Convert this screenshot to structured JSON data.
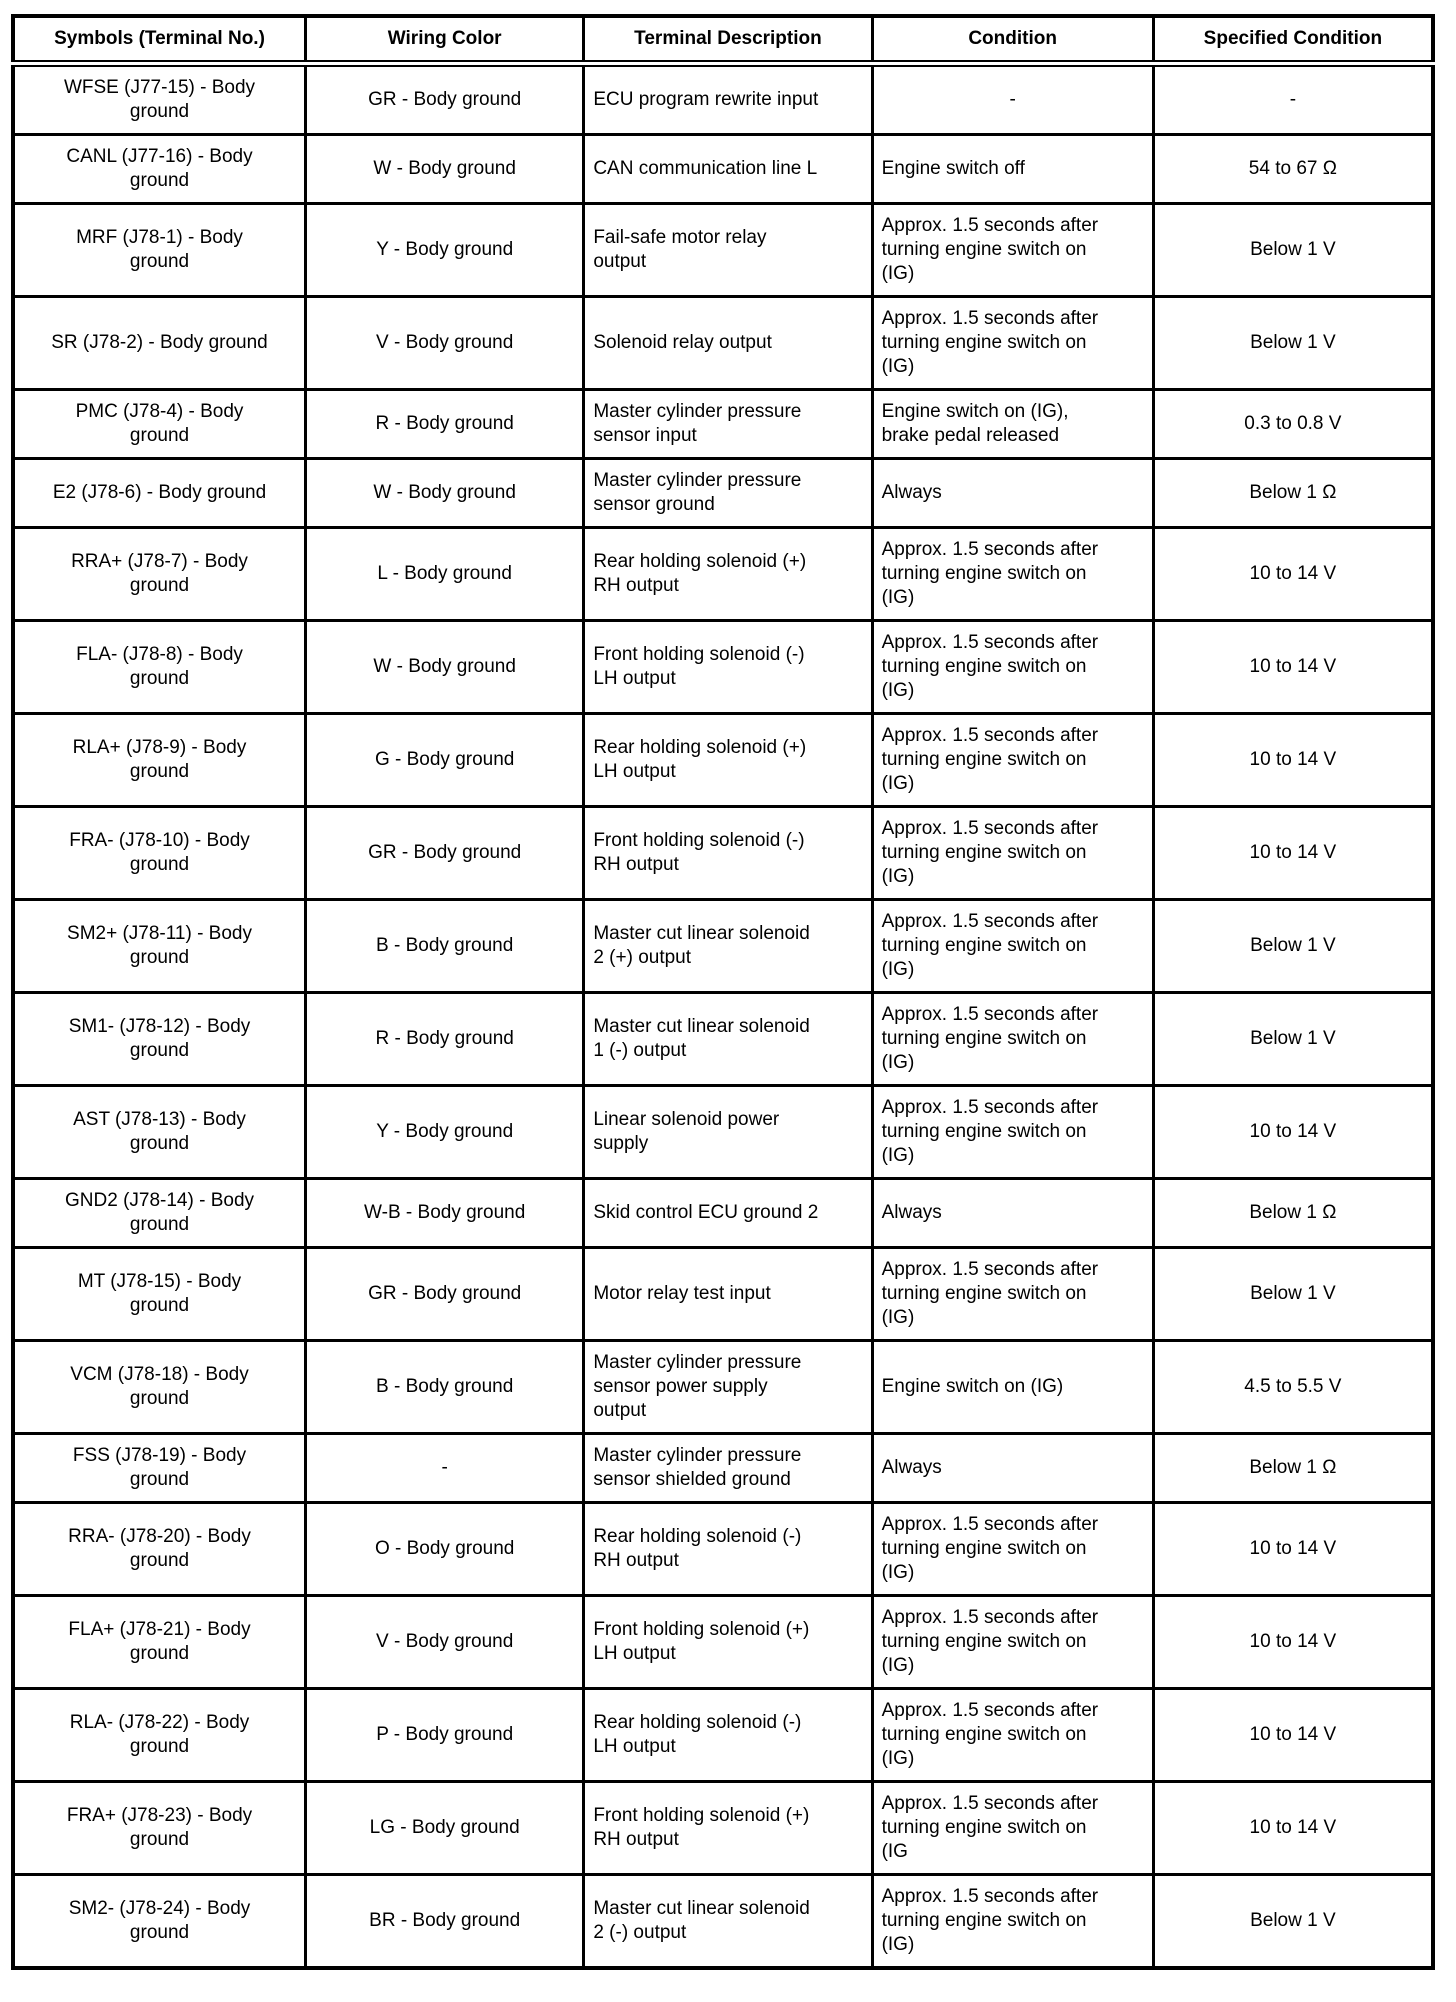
{
  "table": {
    "columns": [
      "Symbols (Terminal No.)",
      "Wiring Color",
      "Terminal Description",
      "Condition",
      "Specified Condition"
    ],
    "rows": [
      [
        "WFSE (J77-15) - Body\nground",
        "GR - Body ground",
        "ECU program rewrite input",
        "-",
        "-"
      ],
      [
        "CANL (J77-16) - Body\nground",
        "W - Body ground",
        "CAN communication line L",
        "Engine switch off",
        "54 to 67 Ω"
      ],
      [
        "MRF (J78-1) - Body\nground",
        "Y - Body ground",
        "Fail-safe motor relay\noutput",
        "Approx. 1.5 seconds after\nturning engine switch on\n(IG)",
        "Below 1 V"
      ],
      [
        "SR (J78-2) - Body ground",
        "V - Body ground",
        "Solenoid relay output",
        "Approx. 1.5 seconds after\nturning engine switch on\n(IG)",
        "Below 1 V"
      ],
      [
        "PMC (J78-4) - Body\nground",
        "R - Body ground",
        "Master cylinder pressure\nsensor input",
        "Engine switch on (IG),\nbrake pedal released",
        "0.3 to 0.8 V"
      ],
      [
        "E2 (J78-6) - Body ground",
        "W - Body ground",
        "Master cylinder pressure\nsensor ground",
        "Always",
        "Below 1 Ω"
      ],
      [
        "RRA+ (J78-7) - Body\nground",
        "L - Body ground",
        "Rear holding solenoid (+)\nRH output",
        "Approx. 1.5 seconds after\nturning engine switch on\n(IG)",
        "10 to 14 V"
      ],
      [
        "FLA- (J78-8) - Body\nground",
        "W - Body ground",
        "Front holding solenoid (-)\nLH output",
        "Approx. 1.5 seconds after\nturning engine switch on\n(IG)",
        "10 to 14 V"
      ],
      [
        "RLA+ (J78-9) - Body\nground",
        "G - Body ground",
        "Rear holding solenoid (+)\nLH output",
        "Approx. 1.5 seconds after\nturning engine switch on\n(IG)",
        "10 to 14 V"
      ],
      [
        "FRA- (J78-10) - Body\nground",
        "GR - Body ground",
        "Front holding solenoid (-)\nRH output",
        "Approx. 1.5 seconds after\nturning engine switch on\n(IG)",
        "10 to 14 V"
      ],
      [
        "SM2+ (J78-11) - Body\nground",
        "B - Body ground",
        "Master cut linear solenoid\n2 (+) output",
        "Approx. 1.5 seconds after\nturning engine switch on\n(IG)",
        "Below 1 V"
      ],
      [
        "SM1- (J78-12) - Body\nground",
        "R - Body ground",
        "Master cut linear solenoid\n1 (-) output",
        "Approx. 1.5 seconds after\nturning engine switch on\n(IG)",
        "Below 1 V"
      ],
      [
        "AST (J78-13) - Body\nground",
        "Y - Body ground",
        "Linear solenoid power\nsupply",
        "Approx. 1.5 seconds after\nturning engine switch on\n(IG)",
        "10 to 14 V"
      ],
      [
        "GND2 (J78-14) - Body\nground",
        "W-B - Body ground",
        "Skid control ECU ground 2",
        "Always",
        "Below 1 Ω"
      ],
      [
        "MT (J78-15) - Body\nground",
        "GR - Body ground",
        "Motor relay test input",
        "Approx. 1.5 seconds after\nturning engine switch on\n(IG)",
        "Below 1 V"
      ],
      [
        "VCM (J78-18) - Body\nground",
        "B - Body ground",
        "Master cylinder pressure\nsensor power supply\noutput",
        "Engine switch on (IG)",
        "4.5 to 5.5 V"
      ],
      [
        "FSS (J78-19) - Body\nground",
        "-",
        "Master cylinder pressure\nsensor shielded ground",
        "Always",
        "Below 1 Ω"
      ],
      [
        "RRA- (J78-20) - Body\nground",
        "O - Body ground",
        "Rear holding solenoid (-)\nRH output",
        "Approx. 1.5 seconds after\nturning engine switch on\n(IG)",
        "10 to 14 V"
      ],
      [
        "FLA+ (J78-21) - Body\nground",
        "V - Body ground",
        "Front holding solenoid (+)\nLH output",
        "Approx. 1.5 seconds after\nturning engine switch on\n(IG)",
        "10 to 14 V"
      ],
      [
        "RLA- (J78-22) - Body\nground",
        "P - Body ground",
        "Rear holding solenoid (-)\nLH output",
        "Approx. 1.5 seconds after\nturning engine switch on\n(IG)",
        "10 to 14 V"
      ],
      [
        "FRA+ (J78-23) - Body\nground",
        "LG - Body ground",
        "Front holding solenoid (+)\nRH output",
        "Approx. 1.5 seconds after\nturning engine switch on\n(IG",
        "10 to 14 V"
      ],
      [
        "SM2- (J78-24) - Body\nground",
        "BR - Body ground",
        "Master cut linear solenoid\n2 (-) output",
        "Approx. 1.5 seconds after\nturning engine switch on\n(IG)",
        "Below 1 V"
      ]
    ]
  }
}
